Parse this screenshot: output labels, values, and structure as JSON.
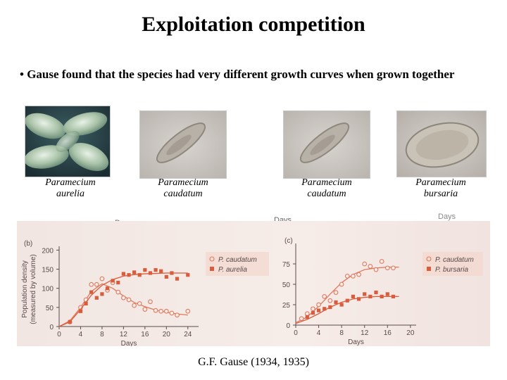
{
  "slide": {
    "title": "Exploitation competition",
    "bullet": "• Gause found that the species had very different growth curves when grown together",
    "credit": "G.F. Gause (1934, 1935)"
  },
  "photos": [
    {
      "caption_line1": "Paramecium",
      "caption_line2": "aurelia"
    },
    {
      "caption_line1": "Paramecium",
      "caption_line2": "caudatum"
    },
    {
      "caption_line1": "Paramecium",
      "caption_line2": "caudatum"
    },
    {
      "caption_line1": "Paramecium",
      "caption_line2": "bursaria"
    }
  ],
  "stray_labels": {
    "days_a": "Days",
    "days_b": "Days",
    "days_c": "Days"
  },
  "colors": {
    "series_circle": "#e07a5f",
    "series_square": "#d95c3c",
    "axis": "#5a4a4a",
    "panel_bg": "#f3e8e4"
  },
  "chart_data": [
    {
      "type": "scatter",
      "panel_label": "(b)",
      "xlabel": "Days",
      "ylabel": "Population density\n(measured by volume)",
      "xlim": [
        0,
        26
      ],
      "ylim": [
        0,
        210
      ],
      "xticks": [
        0,
        4,
        8,
        12,
        16,
        20,
        24
      ],
      "yticks": [
        0,
        50,
        100,
        150,
        200
      ],
      "series": [
        {
          "name": "P. caudatum",
          "marker": "circle-open",
          "x": [
            2,
            4,
            5,
            6,
            7,
            8,
            9,
            10,
            11,
            12,
            13,
            14,
            15,
            16,
            17,
            18,
            19,
            20,
            21,
            22,
            24
          ],
          "y": [
            12,
            50,
            70,
            110,
            110,
            125,
            95,
            115,
            90,
            75,
            70,
            55,
            60,
            45,
            65,
            42,
            40,
            40,
            35,
            30,
            40
          ],
          "curve_x": [
            0,
            2,
            4,
            6,
            8,
            10,
            12,
            14,
            16,
            18,
            20,
            22,
            24
          ],
          "curve_y": [
            0,
            15,
            50,
            92,
            112,
            100,
            80,
            63,
            52,
            43,
            37,
            33,
            30
          ]
        },
        {
          "name": "P. aurelia",
          "marker": "square-filled",
          "x": [
            2,
            4,
            5,
            6,
            7,
            8,
            9,
            10,
            11,
            12,
            13,
            14,
            15,
            16,
            17,
            18,
            19,
            20,
            21,
            22,
            24
          ],
          "y": [
            12,
            40,
            60,
            90,
            75,
            85,
            100,
            120,
            115,
            138,
            135,
            142,
            135,
            148,
            140,
            148,
            145,
            130,
            140,
            125,
            135
          ],
          "curve_x": [
            0,
            2,
            4,
            6,
            8,
            10,
            12,
            14,
            16,
            18,
            20,
            22,
            24
          ],
          "curve_y": [
            0,
            12,
            45,
            82,
            108,
            123,
            132,
            136,
            138,
            139,
            140,
            140,
            140
          ]
        }
      ]
    },
    {
      "type": "scatter",
      "panel_label": "(c)",
      "xlabel": "Days",
      "xlim": [
        0,
        21
      ],
      "ylim": [
        0,
        100
      ],
      "xticks": [
        0,
        4,
        8,
        12,
        16,
        20
      ],
      "yticks": [
        0,
        25,
        50,
        75
      ],
      "series": [
        {
          "name": "P. caudatum",
          "marker": "circle-open",
          "x": [
            1,
            2,
            3,
            4,
            5,
            6,
            7,
            8,
            9,
            10,
            11,
            12,
            13,
            14,
            15,
            16,
            17
          ],
          "y": [
            8,
            14,
            20,
            25,
            35,
            30,
            40,
            50,
            60,
            60,
            62,
            75,
            72,
            68,
            78,
            70,
            70
          ],
          "curve_x": [
            0,
            2,
            4,
            6,
            8,
            10,
            12,
            14,
            16,
            18
          ],
          "curve_y": [
            3,
            10,
            23,
            38,
            52,
            62,
            68,
            70,
            71,
            71
          ]
        },
        {
          "name": "P. bursaria",
          "marker": "square-filled",
          "x": [
            2,
            3,
            4,
            5,
            6,
            7,
            8,
            9,
            10,
            11,
            12,
            13,
            14,
            15,
            16,
            17
          ],
          "y": [
            10,
            15,
            18,
            20,
            22,
            28,
            25,
            30,
            35,
            32,
            38,
            35,
            40,
            35,
            38,
            35
          ],
          "curve_x": [
            0,
            2,
            4,
            6,
            8,
            10,
            12,
            14,
            16,
            18
          ],
          "curve_y": [
            2,
            7,
            14,
            22,
            28,
            32,
            34,
            35,
            35,
            35
          ]
        }
      ]
    }
  ]
}
